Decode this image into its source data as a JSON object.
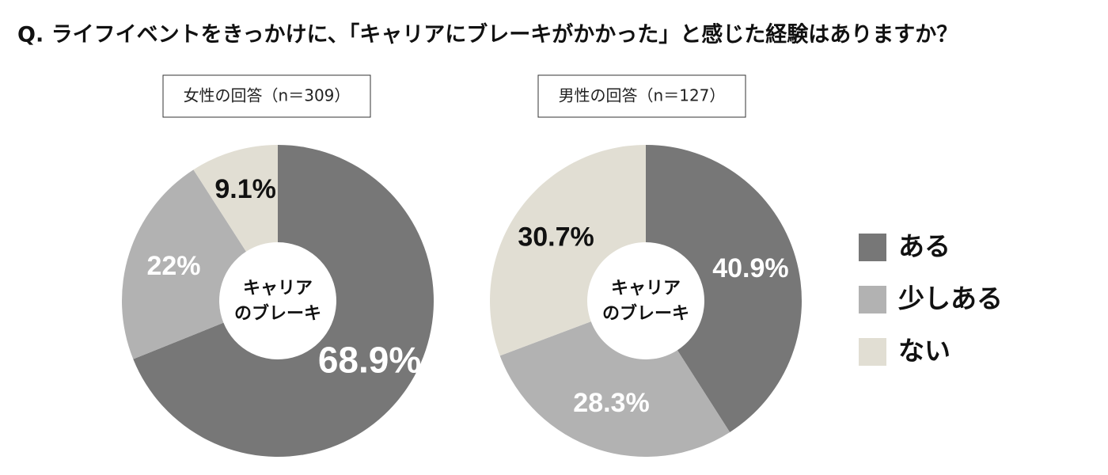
{
  "title": "Q. ライフイベントをきっかけに、「キャリアにブレーキがかかった」と感じた経験はありますか？",
  "chart_data": [
    {
      "type": "pie",
      "subtitle": "女性の回答（n＝309）",
      "center_label": [
        "キャリア",
        "のブレーキ"
      ],
      "categories": [
        "ある",
        "少しある",
        "ない"
      ],
      "values": [
        68.9,
        22,
        9.1
      ],
      "value_labels": [
        "68.9%",
        "22%",
        "9.1%"
      ],
      "colors": [
        "#777777",
        "#b2b2b2",
        "#e1ded3"
      ]
    },
    {
      "type": "pie",
      "subtitle": "男性の回答（n＝127）",
      "center_label": [
        "キャリア",
        "のブレーキ"
      ],
      "categories": [
        "ある",
        "少しある",
        "ない"
      ],
      "values": [
        40.9,
        28.3,
        30.7
      ],
      "value_labels": [
        "40.9%",
        "28.3%",
        "30.7%"
      ],
      "colors": [
        "#777777",
        "#b2b2b2",
        "#e1ded3"
      ]
    }
  ]
}
